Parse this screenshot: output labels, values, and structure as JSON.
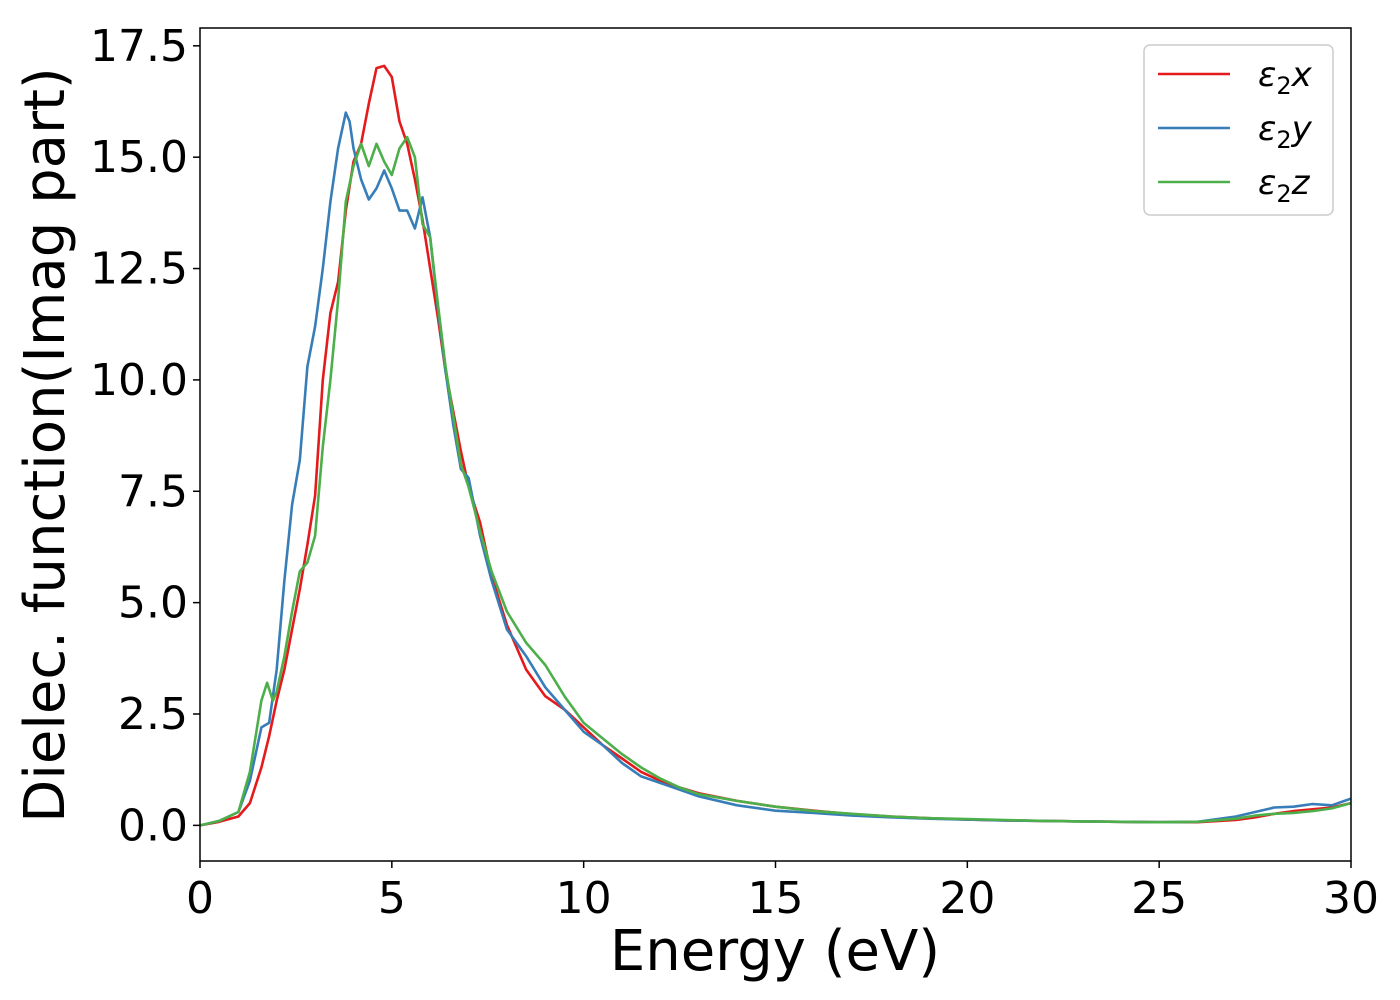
{
  "chart_data": {
    "type": "line",
    "title": "",
    "xlabel": "Energy (eV)",
    "ylabel": "Dielec. function(Imag part)",
    "xlim": [
      0,
      30
    ],
    "ylim": [
      -0.8,
      17.9
    ],
    "xticks": [
      0,
      5,
      10,
      15,
      20,
      25,
      30
    ],
    "xtick_labels": [
      "0",
      "5",
      "10",
      "15",
      "20",
      "25",
      "30"
    ],
    "yticks": [
      0,
      2.5,
      5,
      7.5,
      10,
      12.5,
      15,
      17.5
    ],
    "ytick_labels": [
      "0.0",
      "2.5",
      "5.0",
      "7.5",
      "10.0",
      "12.5",
      "15.0",
      "17.5"
    ],
    "grid": false,
    "legend_position": "top-right",
    "series": [
      {
        "name": "ε₂x",
        "legend_main": "ε",
        "legend_sub": "2",
        "legend_suffix": "x",
        "color": "#e41a1c",
        "x": [
          0,
          0.5,
          1.0,
          1.3,
          1.6,
          1.8,
          2.0,
          2.2,
          2.4,
          2.6,
          2.8,
          3.0,
          3.2,
          3.4,
          3.6,
          3.8,
          4.0,
          4.2,
          4.4,
          4.6,
          4.8,
          5.0,
          5.2,
          5.4,
          5.6,
          5.8,
          6.0,
          6.2,
          6.4,
          6.6,
          6.8,
          7.0,
          7.3,
          7.6,
          8.0,
          8.5,
          9.0,
          9.5,
          10.0,
          10.5,
          11.0,
          11.5,
          12.0,
          12.5,
          13.0,
          14.0,
          15.0,
          16.0,
          17.0,
          18.0,
          19.0,
          20.0,
          21.0,
          22.0,
          23.0,
          24.0,
          25.0,
          26.0,
          27.0,
          27.5,
          28.0,
          28.5,
          29.0,
          29.5,
          30.0
        ],
        "y": [
          0.0,
          0.08,
          0.2,
          0.5,
          1.3,
          2.0,
          2.8,
          3.5,
          4.4,
          5.3,
          6.3,
          7.4,
          10.0,
          11.5,
          12.2,
          13.8,
          14.9,
          15.3,
          16.2,
          17.0,
          17.05,
          16.8,
          15.8,
          15.3,
          14.5,
          13.6,
          12.5,
          11.4,
          10.2,
          9.3,
          8.4,
          7.6,
          6.8,
          5.6,
          4.5,
          3.5,
          2.9,
          2.6,
          2.2,
          1.8,
          1.5,
          1.2,
          1.0,
          0.85,
          0.72,
          0.55,
          0.42,
          0.33,
          0.25,
          0.2,
          0.16,
          0.13,
          0.11,
          0.1,
          0.09,
          0.08,
          0.07,
          0.07,
          0.12,
          0.18,
          0.26,
          0.32,
          0.36,
          0.4,
          0.5
        ]
      },
      {
        "name": "ε₂y",
        "legend_main": "ε",
        "legend_sub": "2",
        "legend_suffix": "y",
        "color": "#377eb8",
        "x": [
          0,
          0.5,
          1.0,
          1.3,
          1.6,
          1.8,
          2.0,
          2.2,
          2.4,
          2.6,
          2.8,
          3.0,
          3.2,
          3.4,
          3.6,
          3.8,
          3.9,
          4.0,
          4.2,
          4.4,
          4.6,
          4.8,
          5.0,
          5.2,
          5.4,
          5.6,
          5.8,
          6.0,
          6.2,
          6.4,
          6.6,
          6.8,
          7.0,
          7.3,
          7.6,
          8.0,
          8.5,
          9.0,
          9.5,
          10.0,
          10.5,
          11.0,
          11.5,
          12.0,
          12.5,
          13.0,
          14.0,
          15.0,
          16.0,
          17.0,
          18.0,
          19.0,
          20.0,
          21.0,
          22.0,
          23.0,
          24.0,
          25.0,
          26.0,
          27.0,
          27.5,
          28.0,
          28.5,
          29.0,
          29.5,
          30.0
        ],
        "y": [
          0.0,
          0.1,
          0.3,
          1.0,
          2.2,
          2.3,
          3.5,
          5.5,
          7.2,
          8.2,
          10.3,
          11.2,
          12.5,
          14.0,
          15.2,
          16.0,
          15.8,
          15.2,
          14.5,
          14.05,
          14.3,
          14.7,
          14.3,
          13.8,
          13.8,
          13.4,
          14.1,
          13.2,
          11.6,
          10.2,
          9.0,
          8.0,
          7.8,
          6.5,
          5.5,
          4.4,
          3.8,
          3.1,
          2.6,
          2.1,
          1.8,
          1.4,
          1.1,
          0.95,
          0.8,
          0.65,
          0.45,
          0.33,
          0.28,
          0.22,
          0.18,
          0.15,
          0.13,
          0.11,
          0.1,
          0.09,
          0.08,
          0.07,
          0.08,
          0.2,
          0.3,
          0.4,
          0.42,
          0.48,
          0.45,
          0.6
        ]
      },
      {
        "name": "ε₂z",
        "legend_main": "ε",
        "legend_sub": "2",
        "legend_suffix": "z",
        "color": "#4daf4a",
        "x": [
          0,
          0.5,
          1.0,
          1.3,
          1.6,
          1.75,
          1.9,
          2.0,
          2.2,
          2.4,
          2.6,
          2.8,
          3.0,
          3.2,
          3.4,
          3.6,
          3.8,
          4.0,
          4.2,
          4.4,
          4.6,
          4.8,
          5.0,
          5.2,
          5.4,
          5.6,
          5.8,
          6.0,
          6.2,
          6.4,
          6.6,
          6.8,
          7.0,
          7.3,
          7.6,
          8.0,
          8.5,
          9.0,
          9.5,
          10.0,
          10.5,
          11.0,
          11.5,
          12.0,
          12.5,
          13.0,
          14.0,
          15.0,
          16.0,
          17.0,
          18.0,
          19.0,
          20.0,
          21.0,
          22.0,
          23.0,
          24.0,
          25.0,
          26.0,
          27.0,
          27.5,
          28.0,
          28.5,
          29.0,
          29.5,
          30.0
        ],
        "y": [
          0.0,
          0.1,
          0.3,
          1.2,
          2.8,
          3.2,
          2.8,
          3.0,
          3.8,
          4.8,
          5.7,
          5.9,
          6.5,
          8.5,
          10.0,
          11.8,
          14.0,
          14.8,
          15.3,
          14.8,
          15.3,
          14.9,
          14.6,
          15.2,
          15.45,
          15.0,
          13.5,
          13.2,
          11.7,
          10.3,
          9.2,
          8.1,
          7.6,
          6.6,
          5.7,
          4.8,
          4.1,
          3.6,
          2.9,
          2.3,
          1.95,
          1.6,
          1.3,
          1.05,
          0.85,
          0.7,
          0.55,
          0.42,
          0.32,
          0.26,
          0.2,
          0.16,
          0.14,
          0.12,
          0.1,
          0.09,
          0.08,
          0.07,
          0.08,
          0.15,
          0.22,
          0.26,
          0.28,
          0.32,
          0.38,
          0.5
        ]
      }
    ]
  }
}
